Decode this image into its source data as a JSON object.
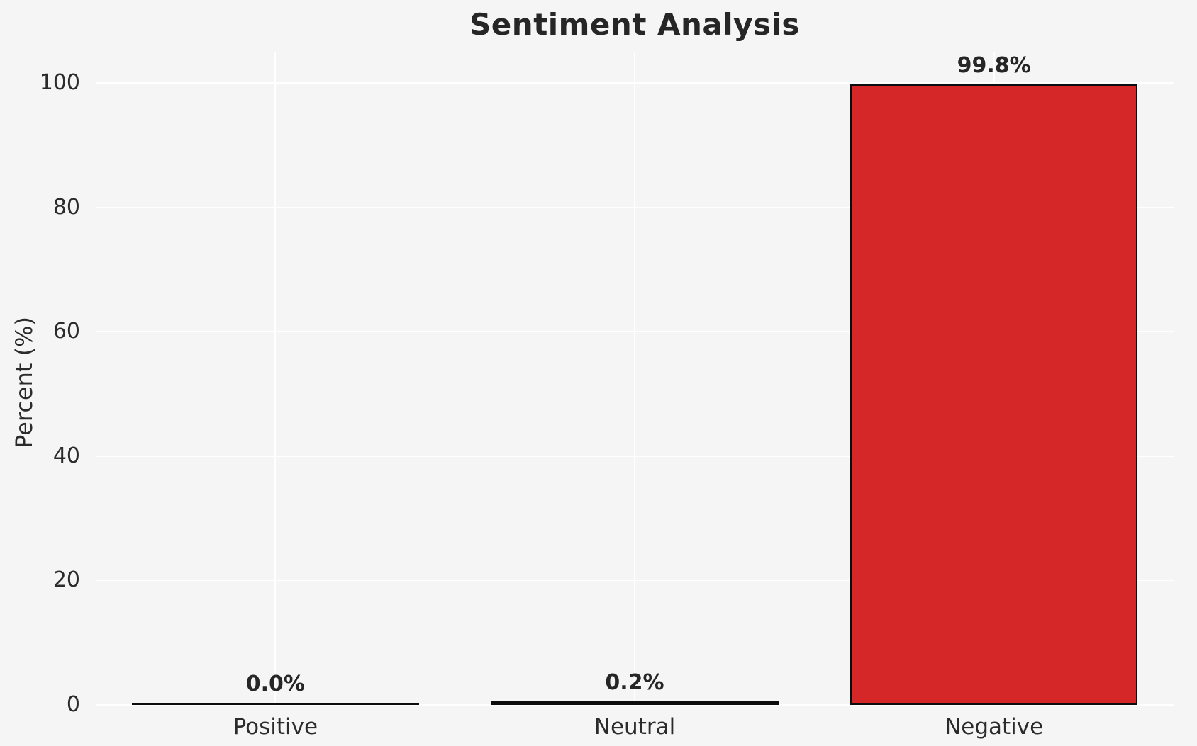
{
  "chart_data": {
    "type": "bar",
    "title": "Sentiment Analysis",
    "xlabel": "",
    "ylabel": "Percent (%)",
    "categories": [
      "Positive",
      "Neutral",
      "Negative"
    ],
    "values": [
      0.0,
      0.2,
      99.8
    ],
    "bar_labels": [
      "0.0%",
      "0.2%",
      "99.8%"
    ],
    "yticks": [
      0,
      20,
      40,
      60,
      80,
      100
    ],
    "ylim": [
      0,
      105
    ],
    "grid": true,
    "legend": false,
    "bar_color": "#d62728",
    "bar_edge_color": "#0d0d0d",
    "gridline_color": "#ffffff",
    "background_color": "#f5f5f6",
    "text_color": "#2b2b2b"
  }
}
